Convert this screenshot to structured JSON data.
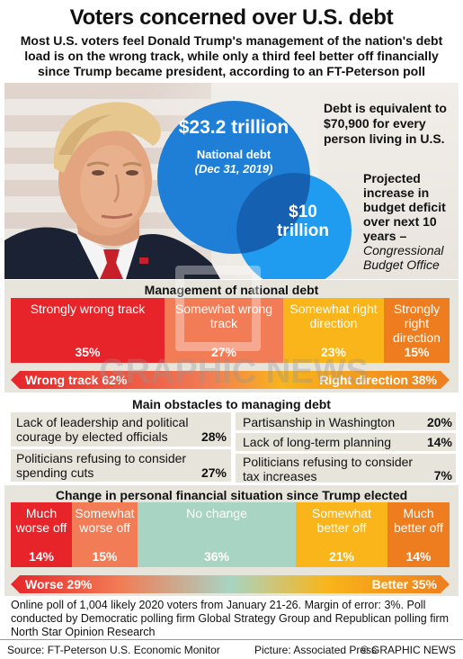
{
  "header": {
    "title": "Voters concerned over U.S. debt",
    "subtitle": "Most U.S. voters feel Donald Trump's management of the nation's debt load is on the wrong track, while only a third feel better off financially since Trump became president, according to an FT-Peterson poll"
  },
  "hero": {
    "debt_value": "$23.2 trillion",
    "debt_label": "National debt",
    "debt_date": "(Dec 31, 2019)",
    "deficit_value": "$10 trillion",
    "per_person_note": "Debt is equivalent to $70,900 for every person living in U.S.",
    "deficit_note_main": "Projected increase in budget deficit over next 10 years –",
    "deficit_note_source": "Congressional Budget Office"
  },
  "management": {
    "heading": "Management of national debt",
    "segments": [
      {
        "label": "Strongly wrong track",
        "pct": "35%",
        "value": 35,
        "color": "#e62429"
      },
      {
        "label": "Somewhat wrong track",
        "pct": "27%",
        "value": 27,
        "color": "#f27c55"
      },
      {
        "label": "Somewhat right direction",
        "pct": "23%",
        "value": 23,
        "color": "#f9b51a"
      },
      {
        "label": "Strongly right direction",
        "pct": "15%",
        "value": 15,
        "color": "#ee7d1f"
      }
    ],
    "left_total": "Wrong track 62%",
    "right_total": "Right direction 38%"
  },
  "obstacles": {
    "heading": "Main obstacles to managing debt",
    "left": [
      {
        "label": "Lack of leadership and political courage by elected officials",
        "pct": "28%"
      },
      {
        "label": "Politicians refusing to consider spending cuts",
        "pct": "27%"
      }
    ],
    "right": [
      {
        "label": "Partisanship in Washington",
        "pct": "20%"
      },
      {
        "label": "Lack of long-term planning",
        "pct": "14%"
      },
      {
        "label": "Politicians refusing to consider tax increases",
        "pct": "7%"
      }
    ]
  },
  "finances": {
    "heading": "Change in personal financial situation since Trump elected",
    "segments": [
      {
        "label": "Much worse off",
        "pct": "14%",
        "value": 14,
        "color": "#e62429"
      },
      {
        "label": "Somewhat worse off",
        "pct": "15%",
        "value": 15,
        "color": "#f27c55"
      },
      {
        "label": "No change",
        "pct": "36%",
        "value": 36,
        "color": "#a8d4c3"
      },
      {
        "label": "Somewhat better off",
        "pct": "21%",
        "value": 21,
        "color": "#f9b51a"
      },
      {
        "label": "Much better off",
        "pct": "14%",
        "value": 14,
        "color": "#ee7d1f"
      }
    ],
    "left_total": "Worse 29%",
    "right_total": "Better 35%"
  },
  "footnote": "Online poll of 1,004 likely 2020 voters from January 21-26. Margin of error: 3%. Poll conducted by Democratic polling firm Global Strategy Group and Republican polling firm North Star Opinion Research",
  "footer": {
    "source": "Source: FT-Peterson U.S. Economic Monitor",
    "picture": "Picture: Associated Press",
    "copyright": "© GRAPHIC NEWS"
  },
  "watermark": "GRAPHIC NEWS",
  "colors": {
    "accent_blue": "#1f7fd6",
    "light_blue": "#1f9cef",
    "red": "#e62429",
    "orange": "#ee7d1f",
    "yellow": "#f9b51a"
  }
}
